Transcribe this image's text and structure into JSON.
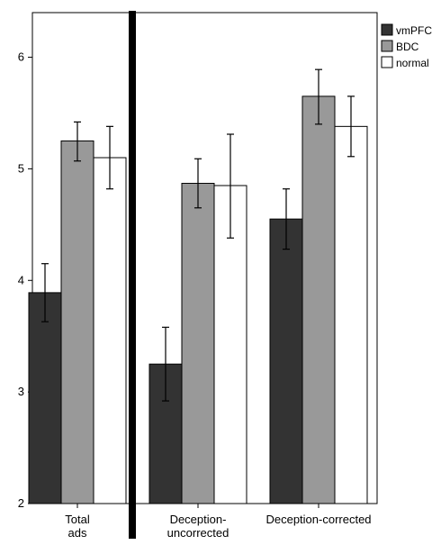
{
  "chart_data": {
    "type": "bar",
    "categories": [
      [
        "Total",
        "ads"
      ],
      [
        "Deception-",
        "uncorrected"
      ],
      [
        "Deception-corrected"
      ]
    ],
    "ylim": [
      2,
      6.4
    ],
    "yticks": [
      2,
      3,
      4,
      5,
      6
    ],
    "grid": false,
    "legend_position": "top-right",
    "series": [
      {
        "name": "vmPFC",
        "color": "#333333",
        "values": [
          3.89,
          3.25,
          4.55
        ],
        "error_low": [
          3.63,
          2.92,
          4.28
        ],
        "error_high": [
          4.15,
          3.58,
          4.82
        ]
      },
      {
        "name": "BDC",
        "color": "#999999",
        "values": [
          5.25,
          4.87,
          5.65
        ],
        "error_low": [
          5.07,
          4.65,
          5.4
        ],
        "error_high": [
          5.42,
          5.09,
          5.89
        ]
      },
      {
        "name": "normal",
        "color": "#ffffff",
        "values": [
          5.1,
          4.85,
          5.38
        ],
        "error_low": [
          4.82,
          4.38,
          5.11
        ],
        "error_high": [
          5.38,
          5.31,
          5.65
        ]
      }
    ]
  }
}
